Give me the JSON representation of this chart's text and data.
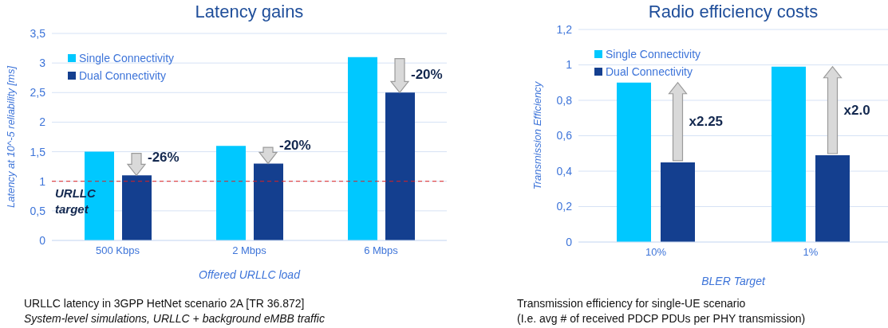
{
  "chart_data": [
    {
      "type": "bar",
      "title": "Latency gains",
      "xlabel": "Offered URLLC load",
      "ylabel": "Latency at 10^-5 reliability [ms]",
      "categories": [
        "500 Kbps",
        "2 Mbps",
        "6 Mbps"
      ],
      "series": [
        {
          "name": "Single Connectivity",
          "color": "#00c8ff",
          "values": [
            1.5,
            1.6,
            3.1
          ]
        },
        {
          "name": "Dual Connectivity",
          "color": "#143f8f",
          "values": [
            1.1,
            1.3,
            2.5
          ]
        }
      ],
      "ylim": [
        0,
        3.5
      ],
      "yticks": [
        0,
        {
          "value": 0.5,
          "label": "0,5"
        },
        1,
        {
          "value": 1.5,
          "label": "1,5"
        },
        2,
        {
          "value": 2.5,
          "label": "2,5"
        },
        3,
        {
          "value": 3.5,
          "label": "3,5"
        }
      ],
      "grid": "y",
      "legend": "top left",
      "ref_lines": [
        {
          "axis": "y",
          "value": 1,
          "label": "URLLC target",
          "color": "#e02020",
          "line_style": "dashed"
        }
      ],
      "annotations": [
        {
          "text": "-26%",
          "x": "500 Kbps",
          "y": 1.1
        },
        {
          "text": "-20%",
          "x": "2 Mbps",
          "y": 1.3
        },
        {
          "text": "-20%",
          "x": "6 Mbps",
          "y": 2.5
        },
        "URLLC latency in 3GPP HetNet scenario 2A [TR 36.872]",
        "System-level simulations, URLLC + background eMBB traffic"
      ]
    },
    {
      "type": "bar",
      "title": "Radio efficiency costs",
      "xlabel": "BLER Target",
      "ylabel": "Transmission Efficiency",
      "categories": [
        "10%",
        "1%"
      ],
      "series": [
        {
          "name": "Single Connectivity",
          "color": "#00c8ff",
          "values": [
            0.9,
            0.99
          ]
        },
        {
          "name": "Dual Connectivity",
          "color": "#143f8f",
          "values": [
            0.45,
            0.49
          ]
        }
      ],
      "ylim": [
        0,
        1.2
      ],
      "yticks": [
        0,
        {
          "value": 0.2,
          "label": "0,2"
        },
        {
          "value": 0.4,
          "label": "0,4"
        },
        {
          "value": 0.6,
          "label": "0,6"
        },
        {
          "value": 0.8,
          "label": "0,8"
        },
        1,
        {
          "value": 1.2,
          "label": "1,2"
        }
      ],
      "grid": "y",
      "legend": "top left",
      "annotations": [
        "x2.25",
        "x2.0",
        "Transmission efficiency for single-UE scenario",
        "(I.e. avg # of received PDCP PDUs per PHY transmission)"
      ]
    }
  ]
}
